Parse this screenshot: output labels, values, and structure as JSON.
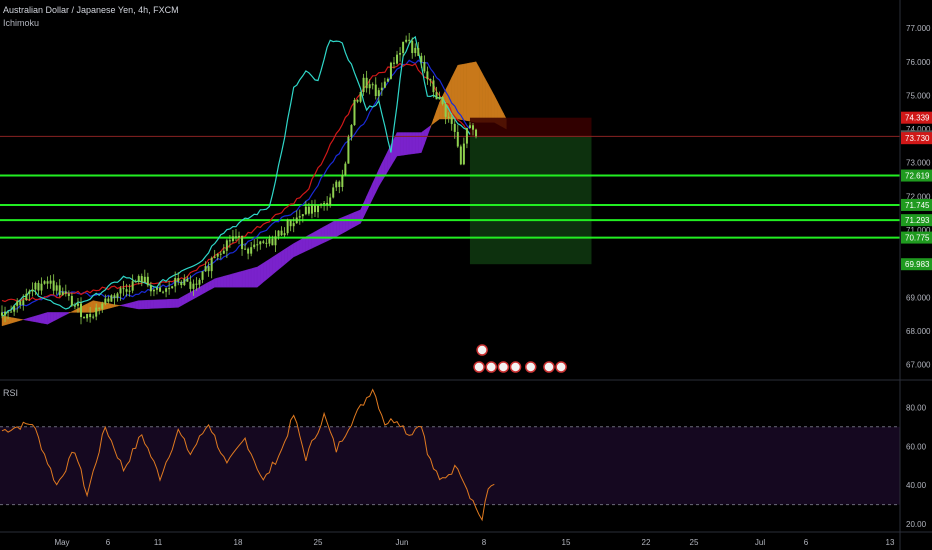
{
  "header": {
    "title": "Australian Dollar / Japanese Yen, 4h, FXCM",
    "indicator": "Ichimoku"
  },
  "rsi_panel": {
    "title": "RSI"
  },
  "colors": {
    "background": "#000000",
    "candle": "#8fd14f",
    "conversion_line": "#2fd6c8",
    "base_line": "#d01818",
    "leading_line": "#1a2ad8",
    "cloud_bull": "#c8781a",
    "cloud_bear": "#7a22cc",
    "level_line": "#22ee22",
    "resistance_line": "#8a2222",
    "rsi_line": "#e07a20",
    "rsi_band": "#150820",
    "target_zone": "#0f3a10",
    "stop_zone": "#3a0000",
    "axis_text": "#b2b5be"
  },
  "chart_data": {
    "type": "candlestick",
    "title": "Australian Dollar / Japanese Yen, 4h, FXCM",
    "price_axis": {
      "ticks": [
        "77.000",
        "76.000",
        "75.000",
        "74.000",
        "73.000",
        "72.000",
        "71.000",
        "70.000",
        "69.000",
        "68.000",
        "67.000"
      ],
      "range": [
        66.6,
        77.6
      ]
    },
    "time_axis": {
      "ticks": [
        "May",
        "6",
        "11",
        "18",
        "25",
        "Jun",
        "8",
        "15",
        "22",
        "25",
        "Jul",
        "6",
        "13"
      ]
    },
    "price_labels": [
      {
        "value": 74.339,
        "text": "74.339",
        "color": "#d01818"
      },
      {
        "value": 73.785,
        "text": "73.785",
        "color": "#555555"
      },
      {
        "value": 73.73,
        "text": "73.730",
        "color": "#d01818"
      },
      {
        "value": 72.619,
        "text": "72.619",
        "color": "#1f9a1f"
      },
      {
        "value": 71.745,
        "text": "71.745",
        "color": "#1f9a1f"
      },
      {
        "value": 71.293,
        "text": "71.293",
        "color": "#1f9a1f"
      },
      {
        "value": 70.775,
        "text": "70.775",
        "color": "#1f9a1f"
      },
      {
        "value": 69.983,
        "text": "69.983",
        "color": "#1f9a1f"
      }
    ],
    "horizontal_levels": [
      {
        "value": 73.785,
        "kind": "resistance"
      },
      {
        "value": 72.619,
        "kind": "support"
      },
      {
        "value": 71.745,
        "kind": "support"
      },
      {
        "value": 71.293,
        "kind": "support"
      },
      {
        "value": 70.775,
        "kind": "support"
      }
    ],
    "position": {
      "entry": 73.785,
      "stop": 74.339,
      "target": 69.983,
      "start_index": 154,
      "end_index": 194
    },
    "candle_count": 195,
    "close_anchors": [
      [
        0,
        68.55
      ],
      [
        8,
        69.0
      ],
      [
        14,
        69.55
      ],
      [
        20,
        69.1
      ],
      [
        28,
        68.4
      ],
      [
        34,
        68.9
      ],
      [
        40,
        69.25
      ],
      [
        46,
        69.55
      ],
      [
        52,
        69.05
      ],
      [
        58,
        69.5
      ],
      [
        64,
        69.25
      ],
      [
        70,
        70.3
      ],
      [
        76,
        70.8
      ],
      [
        82,
        70.4
      ],
      [
        88,
        70.6
      ],
      [
        94,
        71.15
      ],
      [
        100,
        71.55
      ],
      [
        106,
        71.7
      ],
      [
        112,
        72.6
      ],
      [
        116,
        74.7
      ],
      [
        119,
        75.4
      ],
      [
        124,
        75.0
      ],
      [
        129,
        76.05
      ],
      [
        133,
        76.7
      ],
      [
        137,
        76.1
      ],
      [
        141,
        75.3
      ],
      [
        145,
        74.7
      ],
      [
        149,
        73.9
      ],
      [
        151,
        72.9
      ],
      [
        153,
        74.1
      ],
      [
        156,
        73.75
      ]
    ],
    "conversion_anchors": [
      [
        0,
        68.45
      ],
      [
        10,
        69.2
      ],
      [
        20,
        68.65
      ],
      [
        30,
        69.0
      ],
      [
        40,
        69.6
      ],
      [
        50,
        69.3
      ],
      [
        60,
        69.85
      ],
      [
        66,
        70.1
      ],
      [
        72,
        70.9
      ],
      [
        80,
        71.3
      ],
      [
        88,
        71.7
      ],
      [
        92,
        73.3
      ],
      [
        96,
        75.2
      ],
      [
        100,
        75.7
      ],
      [
        104,
        75.4
      ],
      [
        108,
        76.7
      ],
      [
        112,
        76.5
      ],
      [
        116,
        75.7
      ],
      [
        120,
        74.6
      ],
      [
        124,
        74.8
      ],
      [
        128,
        73.3
      ],
      [
        132,
        76.2
      ],
      [
        136,
        76.8
      ],
      [
        140,
        75.0
      ],
      [
        145,
        74.9
      ],
      [
        150,
        74.2
      ],
      [
        154,
        73.9
      ]
    ],
    "base_anchors": [
      [
        0,
        68.9
      ],
      [
        20,
        69.05
      ],
      [
        40,
        69.35
      ],
      [
        60,
        69.55
      ],
      [
        74,
        70.5
      ],
      [
        88,
        71.3
      ],
      [
        100,
        72.1
      ],
      [
        108,
        73.5
      ],
      [
        116,
        74.8
      ],
      [
        122,
        75.6
      ],
      [
        130,
        75.9
      ],
      [
        136,
        75.9
      ],
      [
        142,
        75.3
      ],
      [
        150,
        74.3
      ],
      [
        154,
        73.9
      ]
    ],
    "leading_anchors": [
      [
        0,
        68.5
      ],
      [
        20,
        69.15
      ],
      [
        40,
        69.0
      ],
      [
        60,
        69.5
      ],
      [
        80,
        70.6
      ],
      [
        100,
        71.8
      ],
      [
        110,
        73.2
      ],
      [
        120,
        74.3
      ],
      [
        128,
        75.6
      ],
      [
        134,
        76.0
      ],
      [
        140,
        76.0
      ],
      [
        146,
        75.1
      ],
      [
        154,
        74.0
      ]
    ],
    "cloud_a_anchors": [
      [
        0,
        68.45
      ],
      [
        15,
        68.2
      ],
      [
        30,
        68.9
      ],
      [
        45,
        68.65
      ],
      [
        58,
        68.7
      ],
      [
        70,
        69.3
      ],
      [
        84,
        69.3
      ],
      [
        96,
        70.2
      ],
      [
        110,
        70.8
      ],
      [
        118,
        71.2
      ],
      [
        124,
        72.3
      ],
      [
        130,
        73.2
      ],
      [
        138,
        73.3
      ],
      [
        144,
        74.8
      ],
      [
        150,
        75.9
      ],
      [
        156,
        76.0
      ],
      [
        162,
        75.0
      ],
      [
        166,
        74.3
      ]
    ],
    "cloud_b_anchors": [
      [
        0,
        68.15
      ],
      [
        15,
        68.55
      ],
      [
        30,
        68.55
      ],
      [
        45,
        68.9
      ],
      [
        58,
        68.95
      ],
      [
        70,
        69.55
      ],
      [
        84,
        69.9
      ],
      [
        96,
        70.6
      ],
      [
        110,
        71.3
      ],
      [
        118,
        71.6
      ],
      [
        124,
        72.8
      ],
      [
        130,
        73.9
      ],
      [
        138,
        73.9
      ],
      [
        144,
        74.3
      ],
      [
        150,
        74.3
      ],
      [
        156,
        74.2
      ],
      [
        162,
        74.2
      ],
      [
        166,
        74.0
      ]
    ],
    "rsi": {
      "levels": [
        70,
        30
      ],
      "axis_ticks": [
        "80.00",
        "60.00",
        "40.00",
        "20.00"
      ],
      "range": [
        18,
        92
      ],
      "anchors": [
        [
          0,
          68
        ],
        [
          10,
          72
        ],
        [
          18,
          40
        ],
        [
          24,
          58
        ],
        [
          28,
          35
        ],
        [
          34,
          70
        ],
        [
          40,
          48
        ],
        [
          46,
          66
        ],
        [
          52,
          44
        ],
        [
          58,
          68
        ],
        [
          62,
          56
        ],
        [
          68,
          72
        ],
        [
          74,
          50
        ],
        [
          80,
          64
        ],
        [
          86,
          42
        ],
        [
          92,
          58
        ],
        [
          96,
          76
        ],
        [
          100,
          54
        ],
        [
          106,
          76
        ],
        [
          110,
          58
        ],
        [
          114,
          70
        ],
        [
          118,
          80
        ],
        [
          122,
          90
        ],
        [
          126,
          72
        ],
        [
          130,
          74
        ],
        [
          134,
          66
        ],
        [
          138,
          72
        ],
        [
          140,
          56
        ],
        [
          144,
          42
        ],
        [
          150,
          50
        ],
        [
          154,
          35
        ],
        [
          158,
          22
        ],
        [
          160,
          38
        ],
        [
          162,
          42
        ]
      ]
    }
  }
}
